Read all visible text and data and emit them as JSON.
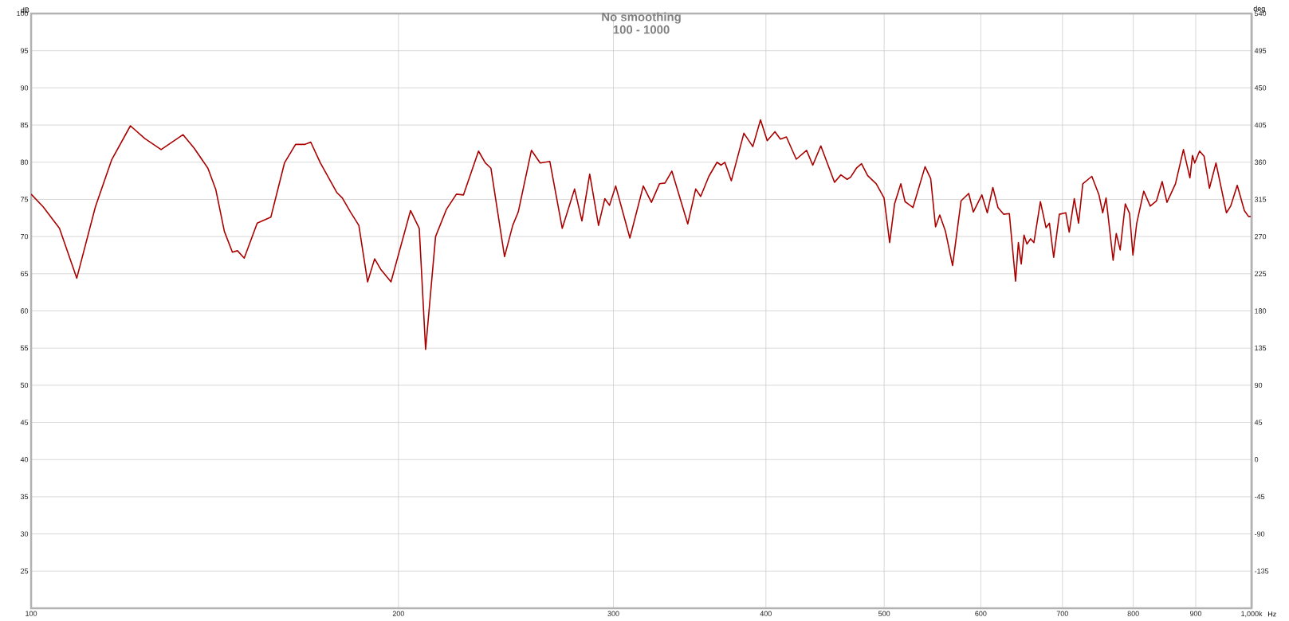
{
  "chart_data": {
    "type": "line",
    "title": "No smoothing",
    "subtitle": "100 - 1000",
    "xlabel": "Hz",
    "ylabel": "dB",
    "y2label": "deg",
    "log": "x",
    "grid": true,
    "marker": "none",
    "line_style": "solid",
    "xlim": [
      100,
      1000
    ],
    "xticks": [
      100,
      200,
      300,
      400,
      500,
      600,
      700,
      800,
      900,
      {
        "value": 1000,
        "label": "1,000k"
      }
    ],
    "ylim": [
      20,
      100
    ],
    "yticks": [
      25,
      30,
      35,
      40,
      45,
      50,
      55,
      60,
      65,
      70,
      75,
      80,
      85,
      90,
      95,
      100
    ],
    "y2lim": [
      -180,
      540
    ],
    "y2ticks": [
      -135,
      -90,
      -45,
      0,
      45,
      90,
      135,
      180,
      225,
      270,
      315,
      360,
      405,
      450,
      495,
      540
    ],
    "series": [
      {
        "color": "#aa0000",
        "x": [
          100,
          102.3,
          105.5,
          109.0,
          112.9,
          116.4,
          120.6,
          123.9,
          127.8,
          133.2,
          136.0,
          139.6,
          141.7,
          144.0,
          146.2,
          147.6,
          149.5,
          153.2,
          157.2,
          161.3,
          164.7,
          167.7,
          169.5,
          172.6,
          178.1,
          179.9,
          182.7,
          185.6,
          188.7,
          191.2,
          193.4,
          197.2,
          204.6,
          208.0,
          210.5,
          214.5,
          219.0,
          223.1,
          226.1,
          232.6,
          235.6,
          238.1,
          244.3,
          248.1,
          250.7,
          257.0,
          261.3,
          266.1,
          272.4,
          278.8,
          282.7,
          286.9,
          291.7,
          295.2,
          297.8,
          301.3,
          309.5,
          317.4,
          322.3,
          327.3,
          330.7,
          335.0,
          345.2,
          350.4,
          353.7,
          359.2,
          364.8,
          367.6,
          370.2,
          374.8,
          383.8,
          390.3,
          396.0,
          401.0,
          406.9,
          411.1,
          415.8,
          423.6,
          431.9,
          437.0,
          443.7,
          455.3,
          460.8,
          466.3,
          469.4,
          474.5,
          479.1,
          484.7,
          492.6,
          499.9,
          505.2,
          509.9,
          516.0,
          520.1,
          527.9,
          540.1,
          545.9,
          550.9,
          555.3,
          561.3,
          568.9,
          578.1,
          586.5,
          591.6,
          601.2,
          607.4,
          613.8,
          619.8,
          626.4,
          633.2,
          640.7,
          644.1,
          647.6,
          651.0,
          654.6,
          659.1,
          663.3,
          671.4,
          678.6,
          683.0,
          688.5,
          695.9,
          704.4,
          708.9,
          715.8,
          721.6,
          727.4,
          739.9,
          749.9,
          755.2,
          760.0,
          770.2,
          774.8,
          780.6,
          788.1,
          794.5,
          799.6,
          805.2,
          816.0,
          826.0,
          835.8,
          844.8,
          852.5,
          866.3,
          879.4,
          890.2,
          894.5,
          898.3,
          906.6,
          914.4,
          923.6,
          935.1,
          953.7,
          961.4,
          973.4,
          986.5,
          994.3,
          1000
        ],
        "values": [
          75.7,
          74.0,
          71.1,
          64.4,
          74.0,
          80.3,
          84.9,
          83.2,
          81.7,
          83.7,
          81.9,
          79.2,
          76.3,
          70.7,
          67.9,
          68.1,
          67.1,
          71.8,
          72.6,
          79.9,
          82.4,
          82.4,
          82.7,
          79.9,
          75.9,
          75.2,
          73.3,
          71.5,
          63.9,
          67.0,
          65.6,
          63.9,
          73.5,
          71.1,
          54.8,
          70.0,
          73.7,
          75.7,
          75.6,
          81.5,
          79.9,
          79.2,
          67.3,
          71.5,
          73.3,
          81.6,
          79.9,
          80.1,
          71.1,
          76.4,
          72.1,
          78.4,
          71.5,
          75.1,
          74.2,
          76.8,
          69.8,
          76.8,
          74.6,
          77.1,
          77.2,
          78.8,
          71.7,
          76.4,
          75.4,
          78.1,
          80.0,
          79.6,
          80.0,
          77.5,
          83.9,
          82.1,
          85.7,
          82.9,
          84.1,
          83.1,
          83.4,
          80.4,
          81.6,
          79.6,
          82.2,
          77.3,
          78.3,
          77.7,
          78.0,
          79.2,
          79.8,
          78.2,
          77.1,
          75.2,
          69.2,
          74.4,
          77.1,
          74.7,
          73.9,
          79.4,
          77.8,
          71.3,
          72.9,
          70.7,
          66.1,
          74.8,
          75.8,
          73.3,
          75.6,
          73.2,
          76.6,
          73.9,
          73.0,
          73.1,
          64.0,
          69.2,
          66.3,
          70.2,
          69.0,
          69.7,
          69.2,
          74.7,
          71.2,
          71.8,
          67.2,
          73.0,
          73.2,
          70.6,
          75.1,
          71.8,
          77.1,
          78.1,
          75.6,
          73.2,
          75.2,
          66.8,
          70.4,
          68.2,
          74.4,
          73.1,
          67.5,
          71.8,
          76.1,
          74.1,
          74.8,
          77.4,
          74.6,
          77.1,
          81.7,
          77.9,
          80.9,
          79.9,
          81.5,
          80.8,
          76.5,
          79.9,
          73.2,
          74.1,
          76.9,
          73.5,
          72.7,
          72.7
        ]
      }
    ]
  }
}
